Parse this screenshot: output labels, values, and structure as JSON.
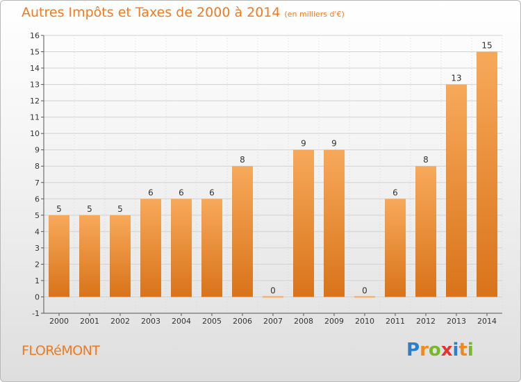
{
  "title": "Autres Impôts et Taxes de 2000 à 2014",
  "subtitle": "(en milliers d'€)",
  "commune": "FLORéMONT",
  "logo": {
    "text": "Proxiti",
    "letters": [
      {
        "ch": "P",
        "color": "#2e7fc9"
      },
      {
        "ch": "r",
        "color": "#f08a1c"
      },
      {
        "ch": "o",
        "color": "#76b82a"
      },
      {
        "ch": "x",
        "color": "#e3342f"
      },
      {
        "ch": "i",
        "color": "#2e7fc9"
      },
      {
        "ch": "t",
        "color": "#f08a1c"
      },
      {
        "ch": "i",
        "color": "#76b82a"
      }
    ]
  },
  "colors": {
    "bar_top": "#f7a95a",
    "bar_bottom": "#d9731a",
    "accent": "#ef7a1f"
  },
  "chart_data": {
    "type": "bar",
    "title": "Autres Impôts et Taxes de 2000 à 2014",
    "subtitle": "(en milliers d'€)",
    "categories": [
      "2000",
      "2001",
      "2002",
      "2003",
      "2004",
      "2005",
      "2006",
      "2007",
      "2008",
      "2009",
      "2010",
      "2011",
      "2012",
      "2013",
      "2014"
    ],
    "values": [
      5,
      5,
      5,
      6,
      6,
      6,
      8,
      0,
      9,
      9,
      0,
      6,
      8,
      13,
      15
    ],
    "data_labels": [
      "5",
      "5",
      "5",
      "6",
      "6",
      "6",
      "8",
      "0",
      "9",
      "9",
      "0",
      "6",
      "8",
      "13",
      "15"
    ],
    "ylim": [
      -1,
      16
    ],
    "yticks": [
      "-1",
      "0",
      "1",
      "2",
      "3",
      "4",
      "5",
      "6",
      "7",
      "8",
      "9",
      "10",
      "11",
      "12",
      "13",
      "14",
      "15",
      "16"
    ],
    "grid": true
  }
}
